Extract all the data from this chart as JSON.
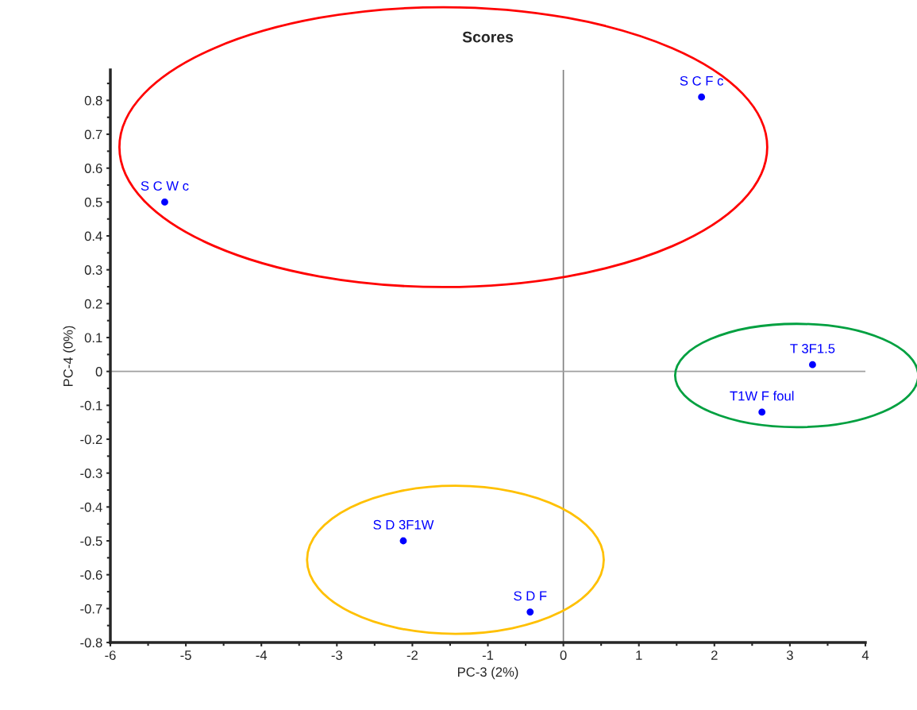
{
  "chart_data": {
    "type": "scatter",
    "title": "Scores",
    "xlabel": "PC-3 (2%)",
    "ylabel": "PC-4 (0%)",
    "x": [
      -5.28,
      1.83,
      3.3,
      2.63,
      -2.12,
      -0.44
    ],
    "series": [
      {
        "color": "#0000ff",
        "values": [
          0.5,
          0.81,
          0.02,
          -0.12,
          -0.5,
          -0.71
        ]
      }
    ],
    "annotations": [
      {
        "text": "S C W c",
        "x": -5.28,
        "y": 0.5
      },
      {
        "text": "S C F c",
        "x": 1.83,
        "y": 0.81
      },
      {
        "text": "T 3F1.5",
        "x": 3.3,
        "y": 0.02
      },
      {
        "text": "T1W F foul",
        "x": 2.63,
        "y": -0.12
      },
      {
        "text": "S D 3F1W",
        "x": -2.12,
        "y": -0.5
      },
      {
        "text": "S D F",
        "x": -0.44,
        "y": -0.71
      }
    ],
    "xlim": [
      -6,
      4
    ],
    "xticks": [
      -6,
      -5,
      -4,
      -3,
      -2,
      -1,
      0,
      1,
      2,
      3,
      4
    ],
    "ylim": [
      -0.8,
      0.89
    ],
    "yticks": [
      -0.8,
      -0.7,
      -0.6,
      -0.5,
      -0.4,
      -0.3,
      -0.2,
      -0.1,
      0,
      0.1,
      0.2,
      0.3,
      0.4,
      0.5,
      0.6,
      0.7,
      0.8
    ],
    "ref_lines": [
      {
        "axis": "x",
        "value": 0,
        "color": "#808080"
      },
      {
        "axis": "y",
        "value": 0,
        "color": "#a0a0a0"
      }
    ],
    "grid": false,
    "legend": false,
    "marker": "circle"
  }
}
